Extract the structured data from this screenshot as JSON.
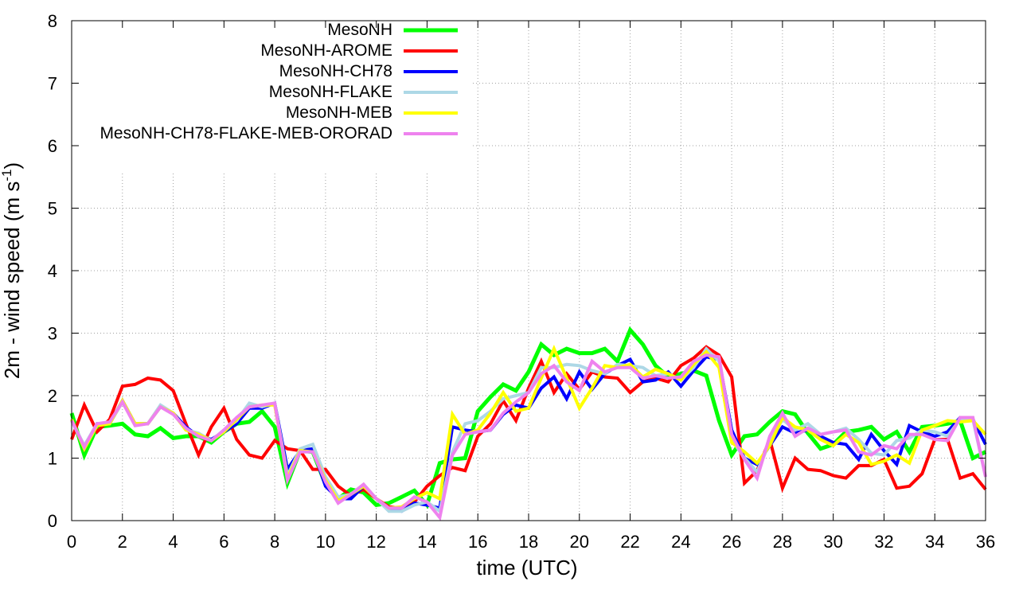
{
  "chart_data": {
    "type": "line",
    "title": "",
    "xlabel": "time (UTC)",
    "ylabel_main": "2m - wind speed  (m s",
    "ylabel_sup": "-1",
    "ylabel_tail": ")",
    "xlim": [
      0,
      36
    ],
    "ylim": [
      0,
      8
    ],
    "xticks": [
      0,
      2,
      4,
      6,
      8,
      10,
      12,
      14,
      16,
      18,
      20,
      22,
      24,
      26,
      28,
      30,
      32,
      34,
      36
    ],
    "yticks": [
      0,
      1,
      2,
      3,
      4,
      5,
      6,
      7,
      8
    ],
    "grid": true,
    "legend_position": "top-left",
    "x": [
      0,
      0.5,
      1,
      1.5,
      2,
      2.5,
      3,
      3.5,
      4,
      4.5,
      5,
      5.5,
      6,
      6.5,
      7,
      7.5,
      8,
      8.5,
      9,
      9.5,
      10,
      10.5,
      11,
      11.5,
      12,
      12.5,
      13,
      13.5,
      14,
      14.5,
      15,
      15.5,
      16,
      16.5,
      17,
      17.5,
      18,
      18.5,
      19,
      19.5,
      20,
      20.5,
      21,
      21.5,
      22,
      22.5,
      23,
      23.5,
      24,
      24.5,
      25,
      25.5,
      26,
      26.5,
      27,
      27.5,
      28,
      28.5,
      29,
      29.5,
      30,
      30.5,
      31,
      31.5,
      32,
      32.5,
      33,
      33.5,
      34,
      34.5,
      35,
      35.5,
      36
    ],
    "series": [
      {
        "name": "MesoNH",
        "color": "#00ff00",
        "width": 5,
        "values": [
          1.72,
          1.05,
          1.5,
          1.52,
          1.55,
          1.38,
          1.35,
          1.48,
          1.32,
          1.35,
          1.35,
          1.25,
          1.42,
          1.55,
          1.58,
          1.75,
          1.5,
          0.6,
          1.12,
          1.1,
          0.58,
          0.35,
          0.5,
          0.45,
          0.25,
          0.28,
          0.38,
          0.48,
          0.25,
          0.92,
          0.98,
          1.0,
          1.75,
          1.98,
          2.18,
          2.08,
          2.38,
          2.82,
          2.65,
          2.75,
          2.68,
          2.68,
          2.75,
          2.55,
          3.05,
          2.82,
          2.48,
          2.3,
          2.35,
          2.4,
          2.32,
          1.6,
          1.05,
          1.35,
          1.38,
          1.58,
          1.75,
          1.7,
          1.4,
          1.15,
          1.22,
          1.42,
          1.45,
          1.5,
          1.3,
          1.42,
          1.1,
          1.5,
          1.52,
          1.55,
          1.6,
          1.0,
          1.1
        ]
      },
      {
        "name": "MesoNH-AROME",
        "color": "#ff0000",
        "width": 4,
        "values": [
          1.3,
          1.85,
          1.42,
          1.62,
          2.15,
          2.18,
          2.28,
          2.25,
          2.08,
          1.55,
          1.05,
          1.5,
          1.8,
          1.3,
          1.05,
          1.0,
          1.28,
          1.15,
          1.12,
          0.82,
          0.82,
          0.55,
          0.4,
          0.5,
          0.35,
          0.22,
          0.2,
          0.3,
          0.55,
          0.72,
          0.85,
          0.8,
          1.35,
          1.55,
          1.92,
          1.6,
          2.12,
          2.55,
          2.05,
          2.35,
          2.1,
          2.38,
          2.3,
          2.28,
          2.05,
          2.22,
          2.28,
          2.22,
          2.48,
          2.6,
          2.78,
          2.65,
          2.3,
          0.6,
          0.8,
          1.3,
          0.52,
          1.0,
          0.82,
          0.8,
          0.72,
          0.68,
          0.88,
          0.88,
          0.98,
          0.52,
          0.55,
          0.75,
          1.3,
          1.3,
          0.68,
          0.75,
          0.5
        ]
      },
      {
        "name": "MesoNH-CH78",
        "color": "#0000ff",
        "width": 4,
        "values": [
          1.62,
          1.15,
          1.55,
          1.55,
          1.92,
          1.55,
          1.55,
          1.82,
          1.72,
          1.5,
          1.35,
          1.3,
          1.42,
          1.55,
          1.8,
          1.8,
          1.88,
          0.82,
          1.12,
          1.15,
          0.55,
          0.35,
          0.35,
          0.55,
          0.35,
          0.18,
          0.15,
          0.28,
          0.25,
          0.2,
          1.5,
          1.45,
          1.42,
          1.45,
          1.7,
          1.85,
          1.8,
          2.12,
          2.3,
          1.95,
          2.38,
          2.1,
          2.35,
          2.48,
          2.58,
          2.22,
          2.25,
          2.38,
          2.15,
          2.4,
          2.62,
          2.58,
          1.45,
          1.0,
          0.9,
          1.2,
          1.5,
          1.4,
          1.45,
          1.35,
          1.25,
          1.22,
          0.98,
          1.38,
          1.12,
          0.9,
          1.52,
          1.42,
          1.35,
          1.42,
          1.65,
          1.62,
          1.22
        ]
      },
      {
        "name": "MesoNH-FLAKE",
        "color": "#add8e6",
        "width": 4,
        "values": [
          1.6,
          1.2,
          1.55,
          1.55,
          1.9,
          1.55,
          1.55,
          1.85,
          1.72,
          1.45,
          1.4,
          1.28,
          1.45,
          1.6,
          1.88,
          1.82,
          1.88,
          0.72,
          1.15,
          1.22,
          0.7,
          0.38,
          0.42,
          0.58,
          0.35,
          0.15,
          0.15,
          0.25,
          0.3,
          0.15,
          1.1,
          1.55,
          1.6,
          1.75,
          1.95,
          2.0,
          2.05,
          2.45,
          2.45,
          2.5,
          2.48,
          2.4,
          2.35,
          2.5,
          2.48,
          2.45,
          2.32,
          2.35,
          2.25,
          2.45,
          2.75,
          2.55,
          1.3,
          1.0,
          0.78,
          1.25,
          1.62,
          1.45,
          1.55,
          1.38,
          1.42,
          1.48,
          1.3,
          1.08,
          1.05,
          1.28,
          1.32,
          1.45,
          1.42,
          1.35,
          1.62,
          1.62,
          0.7
        ]
      },
      {
        "name": "MesoNH-MEB",
        "color": "#ffff00",
        "width": 4,
        "values": [
          1.62,
          1.15,
          1.52,
          1.55,
          1.92,
          1.55,
          1.55,
          1.82,
          1.72,
          1.45,
          1.38,
          1.28,
          1.42,
          1.62,
          1.82,
          1.85,
          1.85,
          0.68,
          1.12,
          1.1,
          0.65,
          0.32,
          0.42,
          0.55,
          0.35,
          0.2,
          0.22,
          0.35,
          0.45,
          0.35,
          1.7,
          1.38,
          1.45,
          1.72,
          2.05,
          1.75,
          1.8,
          2.28,
          2.75,
          2.28,
          1.8,
          2.12,
          2.48,
          2.45,
          2.5,
          2.3,
          2.42,
          2.35,
          2.25,
          2.5,
          2.7,
          2.45,
          1.25,
          1.1,
          0.92,
          1.2,
          1.65,
          1.5,
          1.45,
          1.3,
          1.2,
          1.38,
          1.25,
          0.9,
          0.95,
          1.05,
          0.92,
          1.45,
          1.52,
          1.6,
          1.58,
          1.6,
          1.38
        ]
      },
      {
        "name": "MesoNH-CH78-FLAKE-MEB-ORORAD",
        "color": "#ee82ee",
        "width": 4,
        "values": [
          1.6,
          1.18,
          1.55,
          1.58,
          1.9,
          1.52,
          1.55,
          1.82,
          1.7,
          1.48,
          1.35,
          1.28,
          1.45,
          1.65,
          1.82,
          1.85,
          1.88,
          0.65,
          1.1,
          1.1,
          0.62,
          0.28,
          0.42,
          0.58,
          0.35,
          0.2,
          0.2,
          0.38,
          0.3,
          0.05,
          1.05,
          1.38,
          1.42,
          1.45,
          1.72,
          1.9,
          2.05,
          2.35,
          2.48,
          2.22,
          2.08,
          2.55,
          2.38,
          2.45,
          2.45,
          2.28,
          2.32,
          2.28,
          2.3,
          2.55,
          2.65,
          2.62,
          1.38,
          0.98,
          0.68,
          1.35,
          1.72,
          1.35,
          1.48,
          1.38,
          1.42,
          1.45,
          1.1,
          1.05,
          1.2,
          1.15,
          1.38,
          1.38,
          1.3,
          1.28,
          1.65,
          1.65,
          0.7
        ]
      }
    ]
  }
}
